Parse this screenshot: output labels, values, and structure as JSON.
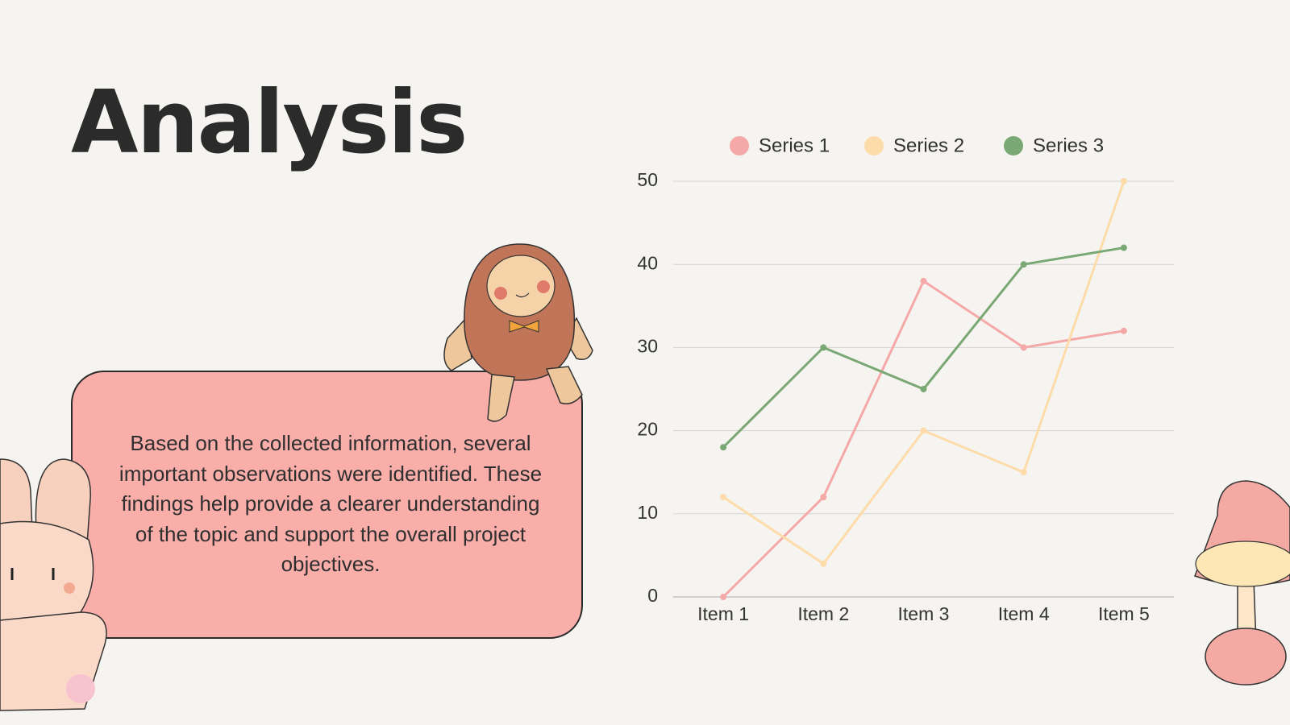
{
  "title": "Analysis",
  "body": "Based on the collected information, several important observations were identified. These findings help provide a clearer understanding of the topic and support the overall project objectives.",
  "chart_data": {
    "type": "line",
    "categories": [
      "Item 1",
      "Item 2",
      "Item 3",
      "Item 4",
      "Item 5"
    ],
    "series": [
      {
        "name": "Series 1",
        "color": "#f4a9a8",
        "values": [
          0,
          12,
          38,
          30,
          32
        ]
      },
      {
        "name": "Series 2",
        "color": "#fddcaa",
        "values": [
          12,
          4,
          20,
          15,
          50
        ]
      },
      {
        "name": "Series 3",
        "color": "#7aa874",
        "values": [
          18,
          30,
          25,
          40,
          42
        ]
      }
    ],
    "ylim": [
      0,
      50
    ],
    "yticks": [
      0,
      10,
      20,
      30,
      40,
      50
    ],
    "grid": true,
    "legend": "top"
  }
}
